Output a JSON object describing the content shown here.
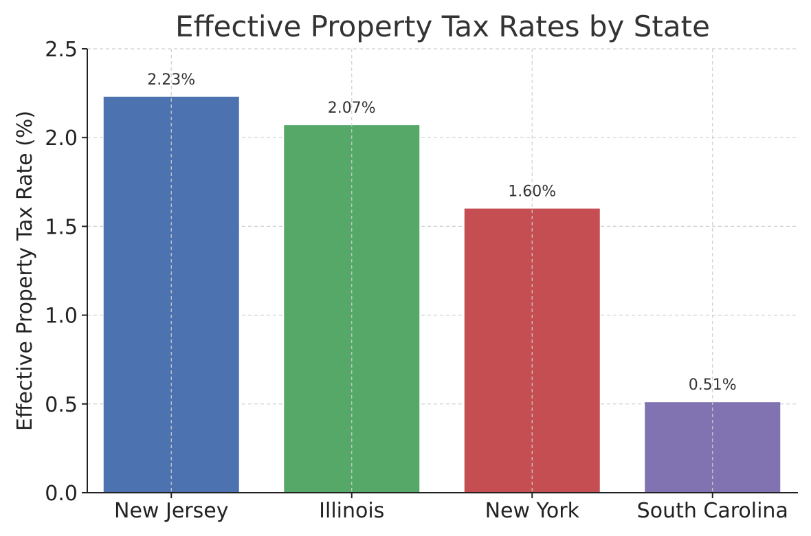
{
  "chart_data": {
    "type": "bar",
    "title": "Effective Property Tax Rates by State",
    "xlabel": "",
    "ylabel": "Effective Property Tax Rate (%)",
    "categories": [
      "New Jersey",
      "Illinois",
      "New York",
      "South Carolina"
    ],
    "values": [
      2.23,
      2.07,
      1.6,
      0.51
    ],
    "data_labels": [
      "2.23%",
      "2.07%",
      "1.60%",
      "0.51%"
    ],
    "colors": [
      "#4c72b0",
      "#55a868",
      "#c44e52",
      "#8172b2"
    ],
    "ylim": [
      0,
      2.5
    ],
    "yticks": [
      0.0,
      0.5,
      1.0,
      1.5,
      2.0,
      2.5
    ],
    "ytick_labels": [
      "0.0",
      "0.5",
      "1.0",
      "1.5",
      "2.0",
      "2.5"
    ],
    "grid": true
  }
}
